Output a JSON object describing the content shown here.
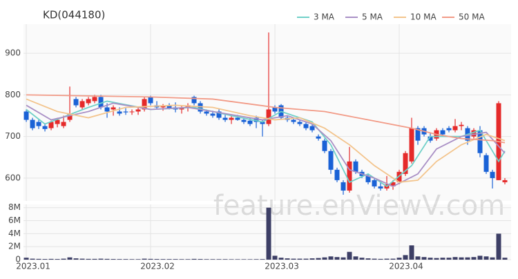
{
  "chart_data": {
    "type": "candlestick",
    "title": "KD(044180)",
    "watermark": "feature.enViewV.com",
    "xlim": [
      -0.45,
      78
    ],
    "xticks": [
      {
        "value": 0,
        "label": "2023.01"
      },
      {
        "value": 20,
        "label": "2023.02"
      },
      {
        "value": 40,
        "label": "2023.03"
      },
      {
        "value": 60,
        "label": "2023.04"
      }
    ],
    "ylim": [
      545,
      970
    ],
    "yticks": [
      600,
      700,
      800,
      900
    ],
    "y2lim": [
      0,
      8500000
    ],
    "y2ticks": [
      0,
      {
        "value": 2000000,
        "label": "2M"
      },
      {
        "value": 4000000,
        "label": "4M"
      },
      {
        "value": 6000000,
        "label": "6M"
      },
      {
        "value": 8000000,
        "label": "8M"
      }
    ],
    "up_color": "#e52a2a",
    "down_color": "#1a62d6",
    "volume_color": "#3d3f66",
    "grid": true,
    "legend": "top-right",
    "open": [
      760,
      740,
      735,
      725,
      720,
      730,
      725,
      740,
      790,
      770,
      780,
      785,
      795,
      770,
      765,
      760,
      760,
      760,
      760,
      765,
      795,
      775,
      770,
      775,
      770,
      765,
      770,
      795,
      780,
      760,
      755,
      760,
      745,
      740,
      745,
      740,
      738,
      745,
      735,
      730,
      770,
      775,
      745,
      740,
      735,
      730,
      725,
      700,
      690,
      665,
      620,
      590,
      570,
      640,
      615,
      605,
      595,
      580,
      575,
      580,
      590,
      610,
      640,
      720,
      720,
      700,
      695,
      715,
      720,
      715,
      725,
      720,
      700,
      715,
      655,
      615,
      595,
      590
    ],
    "high": [
      765,
      745,
      742,
      732,
      738,
      745,
      750,
      820,
      795,
      790,
      795,
      800,
      800,
      780,
      775,
      770,
      768,
      765,
      770,
      795,
      798,
      785,
      778,
      780,
      782,
      775,
      780,
      798,
      785,
      765,
      762,
      765,
      752,
      750,
      752,
      745,
      745,
      750,
      740,
      950,
      775,
      778,
      750,
      745,
      740,
      735,
      730,
      705,
      695,
      670,
      625,
      595,
      675,
      645,
      620,
      610,
      600,
      590,
      605,
      595,
      620,
      665,
      745,
      725,
      725,
      710,
      720,
      720,
      725,
      742,
      735,
      725,
      720,
      725,
      660,
      620,
      785,
      600
    ],
    "low": [
      735,
      715,
      718,
      712,
      715,
      722,
      720,
      735,
      770,
      765,
      775,
      780,
      765,
      745,
      750,
      750,
      752,
      752,
      752,
      760,
      775,
      765,
      762,
      765,
      758,
      755,
      760,
      775,
      755,
      750,
      745,
      740,
      735,
      730,
      738,
      730,
      725,
      720,
      700,
      725,
      755,
      740,
      735,
      730,
      725,
      715,
      710,
      690,
      660,
      610,
      590,
      560,
      565,
      610,
      600,
      585,
      575,
      570,
      570,
      572,
      585,
      605,
      635,
      680,
      700,
      685,
      690,
      700,
      710,
      710,
      715,
      680,
      695,
      650,
      610,
      575,
      595,
      585
    ],
    "close": [
      740,
      720,
      725,
      718,
      735,
      740,
      735,
      755,
      775,
      785,
      790,
      795,
      770,
      760,
      770,
      755,
      758,
      760,
      765,
      790,
      780,
      770,
      775,
      768,
      765,
      770,
      775,
      780,
      760,
      755,
      750,
      745,
      740,
      745,
      740,
      735,
      730,
      735,
      730,
      765,
      760,
      745,
      740,
      735,
      730,
      720,
      715,
      695,
      665,
      620,
      595,
      570,
      640,
      615,
      605,
      590,
      580,
      575,
      585,
      590,
      615,
      660,
      720,
      690,
      705,
      690,
      715,
      705,
      715,
      725,
      728,
      690,
      715,
      660,
      615,
      600,
      780,
      595
    ],
    "volume": [
      300000,
      150000,
      120000,
      100000,
      120000,
      100000,
      150000,
      350000,
      200000,
      150000,
      120000,
      120000,
      150000,
      120000,
      100000,
      90000,
      90000,
      80000,
      80000,
      150000,
      120000,
      100000,
      90000,
      90000,
      90000,
      80000,
      80000,
      120000,
      100000,
      80000,
      80000,
      80000,
      80000,
      70000,
      70000,
      70000,
      70000,
      80000,
      90000,
      8000000,
      600000,
      300000,
      200000,
      150000,
      150000,
      150000,
      200000,
      250000,
      350000,
      500000,
      400000,
      350000,
      1200000,
      500000,
      300000,
      200000,
      150000,
      120000,
      150000,
      150000,
      300000,
      700000,
      2200000,
      500000,
      400000,
      300000,
      250000,
      300000,
      300000,
      400000,
      350000,
      350000,
      400000,
      600000,
      500000,
      350000,
      4000000,
      300000
    ],
    "series": [
      {
        "name": "3 MA",
        "color": "#6fd0c8",
        "x": [
          0,
          3,
          10,
          13,
          20,
          27,
          33,
          38,
          41,
          46,
          49,
          52,
          55,
          58,
          62,
          65,
          70,
          73,
          76,
          77
        ],
        "values": [
          765,
          730,
          770,
          785,
          765,
          770,
          750,
          735,
          760,
          735,
          680,
          590,
          610,
          580,
          630,
          700,
          700,
          715,
          640,
          665
        ]
      },
      {
        "name": "5 MA",
        "color": "#a98fc5",
        "x": [
          0,
          4,
          10,
          14,
          20,
          26,
          32,
          38,
          42,
          46,
          49,
          52,
          56,
          59,
          63,
          66,
          70,
          74,
          77
        ],
        "values": [
          775,
          740,
          760,
          780,
          765,
          770,
          755,
          740,
          750,
          730,
          690,
          620,
          600,
          580,
          610,
          670,
          700,
          710,
          660
        ]
      },
      {
        "name": "10 MA",
        "color": "#f3c48c",
        "x": [
          0,
          5,
          10,
          16,
          24,
          30,
          36,
          40,
          44,
          48,
          52,
          56,
          60,
          63,
          66,
          70,
          74,
          77
        ],
        "values": [
          790,
          760,
          745,
          770,
          775,
          770,
          750,
          740,
          745,
          720,
          680,
          630,
          590,
          595,
          640,
          680,
          705,
          690
        ]
      },
      {
        "name": "50 MA",
        "color": "#f29a86",
        "x": [
          0,
          20,
          30,
          40,
          48,
          55,
          62,
          66,
          70,
          75,
          77
        ],
        "values": [
          800,
          795,
          790,
          770,
          760,
          740,
          720,
          705,
          695,
          690,
          685
        ]
      }
    ]
  }
}
